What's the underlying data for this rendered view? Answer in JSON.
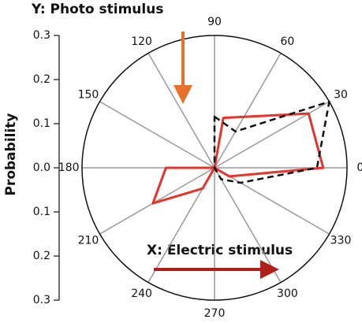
{
  "chart_data": {
    "type": "polar",
    "annotations": [
      "Y: Photo stimulus",
      "X: Electric stimulus"
    ],
    "y_label": "Probability",
    "rlim": [
      0,
      0.3
    ],
    "ylim": [
      -0.3,
      0.3
    ],
    "yticks": [
      {
        "value": -0.3,
        "label": "0.3"
      },
      {
        "value": -0.2,
        "label": "0.2"
      },
      {
        "value": -0.1,
        "label": "0.1"
      },
      {
        "value": 0,
        "label": "0.0"
      },
      0.1,
      0.2,
      0.3
    ],
    "angle_ticks": [
      0,
      30,
      60,
      90,
      120,
      150,
      180,
      210,
      240,
      270,
      300,
      330
    ],
    "series": [
      {
        "color": "#e8322a",
        "dash": false,
        "theta": [
          80,
          30,
          0,
          330,
          270,
          240,
          210,
          180,
          120
        ],
        "r": [
          0.115,
          0.246,
          0.246,
          0.039,
          0,
          0.054,
          0.161,
          0.11,
          0
        ]
      },
      {
        "color": "#111111",
        "dash": true,
        "theta": [
          90,
          60,
          30,
          0,
          330,
          300,
          240
        ],
        "r": [
          0.116,
          0.095,
          0.3,
          0.232,
          0.068,
          0.03,
          0
        ]
      }
    ]
  }
}
